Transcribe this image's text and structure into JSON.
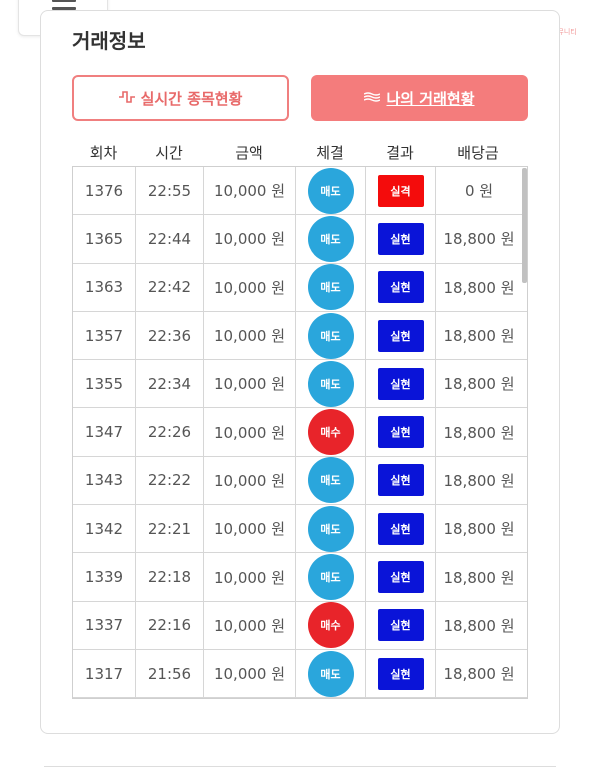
{
  "watermark": {
    "main": "마진",
    "sub": "마진거래 검증전문 커뮤니티"
  },
  "section": {
    "title": "거래정보"
  },
  "buttons": {
    "realtime": {
      "icon": "pulse-icon",
      "label": "실시간 종목현황"
    },
    "mine": {
      "icon": "waves-icon",
      "label": "나의 거래현황"
    }
  },
  "table": {
    "headers": [
      "회차",
      "시간",
      "금액",
      "체결",
      "결과",
      "배당금"
    ],
    "rows": [
      {
        "round": "1376",
        "time": "22:55",
        "amount": "10,000 원",
        "execution": "매도",
        "result": "실격",
        "dividend": "0 원"
      },
      {
        "round": "1365",
        "time": "22:44",
        "amount": "10,000 원",
        "execution": "매도",
        "result": "실현",
        "dividend": "18,800 원"
      },
      {
        "round": "1363",
        "time": "22:42",
        "amount": "10,000 원",
        "execution": "매도",
        "result": "실현",
        "dividend": "18,800 원"
      },
      {
        "round": "1357",
        "time": "22:36",
        "amount": "10,000 원",
        "execution": "매도",
        "result": "실현",
        "dividend": "18,800 원"
      },
      {
        "round": "1355",
        "time": "22:34",
        "amount": "10,000 원",
        "execution": "매도",
        "result": "실현",
        "dividend": "18,800 원"
      },
      {
        "round": "1347",
        "time": "22:26",
        "amount": "10,000 원",
        "execution": "매수",
        "result": "실현",
        "dividend": "18,800 원"
      },
      {
        "round": "1343",
        "time": "22:22",
        "amount": "10,000 원",
        "execution": "매도",
        "result": "실현",
        "dividend": "18,800 원"
      },
      {
        "round": "1342",
        "time": "22:21",
        "amount": "10,000 원",
        "execution": "매도",
        "result": "실현",
        "dividend": "18,800 원"
      },
      {
        "round": "1339",
        "time": "22:18",
        "amount": "10,000 원",
        "execution": "매도",
        "result": "실현",
        "dividend": "18,800 원"
      },
      {
        "round": "1337",
        "time": "22:16",
        "amount": "10,000 원",
        "execution": "매수",
        "result": "실현",
        "dividend": "18,800 원"
      },
      {
        "round": "1317",
        "time": "21:56",
        "amount": "10,000 원",
        "execution": "매도",
        "result": "실현",
        "dividend": "18,800 원"
      }
    ]
  },
  "colors": {
    "accent": "#f47c7c",
    "sell": "#2aa6dc",
    "buy": "#e8242a",
    "realized": "#0a14d8",
    "disqualified": "#f40c0c"
  }
}
